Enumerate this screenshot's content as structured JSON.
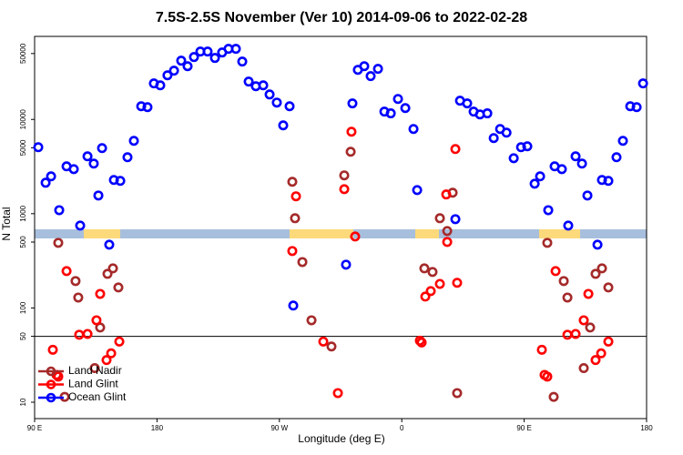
{
  "chart_data": {
    "type": "scatter",
    "title": "7.5S-2.5S November (Ver 10)   2014-09-06 to 2022-02-28",
    "x_label": "Longitude (deg E)",
    "y_label": "N Total",
    "log_y": true,
    "legend": "lower left",
    "xlim": [
      90,
      540
    ],
    "ylim": [
      6.7,
      76000
    ],
    "xticks": [
      {
        "value": 90,
        "label": "90 E"
      },
      180,
      {
        "value": 270,
        "label": "90 W"
      },
      {
        "value": 360,
        "label": "0"
      },
      {
        "value": 450,
        "label": "90 E"
      },
      {
        "value": 540,
        "label": "180"
      }
    ],
    "yticks": [
      10,
      50,
      100,
      500,
      1000,
      5000,
      10000,
      50000
    ],
    "hline": 50,
    "series": [
      {
        "name": "Land Nadir",
        "color": "#a52a2a",
        "x": [
          107.4,
          112.1,
          120.1,
          122.1,
          134.2,
          138.2,
          143.6,
          147.6,
          151.6,
          279.5,
          281.5,
          286.9,
          293.6,
          308.3,
          317.7,
          322.4,
          376.6,
          382.6,
          388.0,
          393.4,
          397.4,
          400.7,
          467.0,
          471.7,
          479.1,
          481.8,
          493.8,
          498.5,
          502.5,
          507.2,
          511.9
        ],
        "values": [
          491,
          11.4,
          193,
          129,
          23,
          62,
          230,
          263,
          165,
          2180,
          895,
          307,
          74,
          39,
          2550,
          4540,
          263,
          241,
          895,
          655,
          1670,
          12.5,
          491,
          11.4,
          193,
          129,
          23,
          62,
          230,
          263,
          165
        ]
      },
      {
        "name": "Land Glint",
        "color": "#ff0000",
        "x": [
          103.4,
          106.1,
          107.4,
          113.5,
          122.8,
          128.9,
          135.5,
          138.2,
          142.9,
          146.3,
          152.3,
          279.5,
          282.2,
          302.3,
          313.0,
          317.7,
          323.0,
          325.7,
          373.3,
          374.6,
          377.3,
          381.3,
          388.0,
          392.7,
          393.4,
          399.4,
          400.7,
          463.0,
          465.0,
          467.0,
          473.1,
          481.8,
          487.8,
          493.8,
          497.2,
          502.5,
          506.6,
          511.9
        ],
        "values": [
          36,
          19.5,
          18.7,
          246,
          52,
          53,
          74,
          141,
          28,
          33,
          44,
          402,
          1530,
          44,
          12.5,
          1820,
          7410,
          573,
          45,
          43,
          132,
          151,
          180,
          1600,
          501,
          4850,
          185,
          36,
          19.5,
          18.7,
          246,
          52,
          53,
          74,
          141,
          28,
          33,
          44
        ]
      },
      {
        "name": "Ocean Glint",
        "color": "#0000ff",
        "x": [
          92.7,
          98.1,
          102.1,
          108.1,
          113.5,
          118.8,
          123.5,
          128.9,
          133.5,
          136.9,
          139.6,
          144.9,
          148.3,
          153.0,
          158.3,
          163.0,
          168.4,
          173.0,
          177.7,
          182.4,
          187.7,
          192.5,
          197.8,
          202.5,
          207.2,
          211.9,
          217.2,
          222.6,
          227.9,
          232.6,
          238.0,
          242.7,
          247.4,
          252.7,
          258.1,
          262.8,
          268.1,
          272.8,
          277.5,
          280.2,
          319.0,
          323.7,
          327.7,
          332.4,
          337.1,
          342.5,
          347.2,
          351.9,
          357.2,
          362.6,
          368.6,
          371.3,
          399.4,
          402.8,
          408.1,
          412.8,
          417.5,
          422.9,
          427.6,
          432.3,
          437.0,
          442.3,
          447.7,
          452.3,
          457.7,
          461.7,
          467.7,
          472.4,
          477.7,
          482.4,
          487.8,
          492.5,
          496.5,
          503.9,
          507.2,
          511.9,
          517.9,
          522.6,
          528.0,
          532.7,
          537.4
        ],
        "values": [
          5070,
          2130,
          2490,
          1090,
          3180,
          2970,
          748,
          4060,
          3400,
          1560,
          4960,
          469,
          2280,
          2230,
          3970,
          5930,
          13800,
          13500,
          24100,
          23000,
          29400,
          32900,
          42000,
          36700,
          45900,
          52500,
          52500,
          44900,
          51300,
          56100,
          56100,
          41100,
          25200,
          22500,
          23000,
          18400,
          15100,
          8650,
          13800,
          106,
          288,
          14800,
          33600,
          36700,
          28800,
          34400,
          12100,
          11600,
          16500,
          13200,
          7920,
          1780,
          875,
          15800,
          14800,
          12100,
          11300,
          11600,
          6340,
          7920,
          7240,
          3880,
          5070,
          5190,
          2080,
          2490,
          1090,
          3180,
          2970,
          748,
          4060,
          3400,
          1560,
          469,
          2280,
          2230,
          3970,
          5930,
          13800,
          13500,
          24100
        ]
      }
    ]
  }
}
